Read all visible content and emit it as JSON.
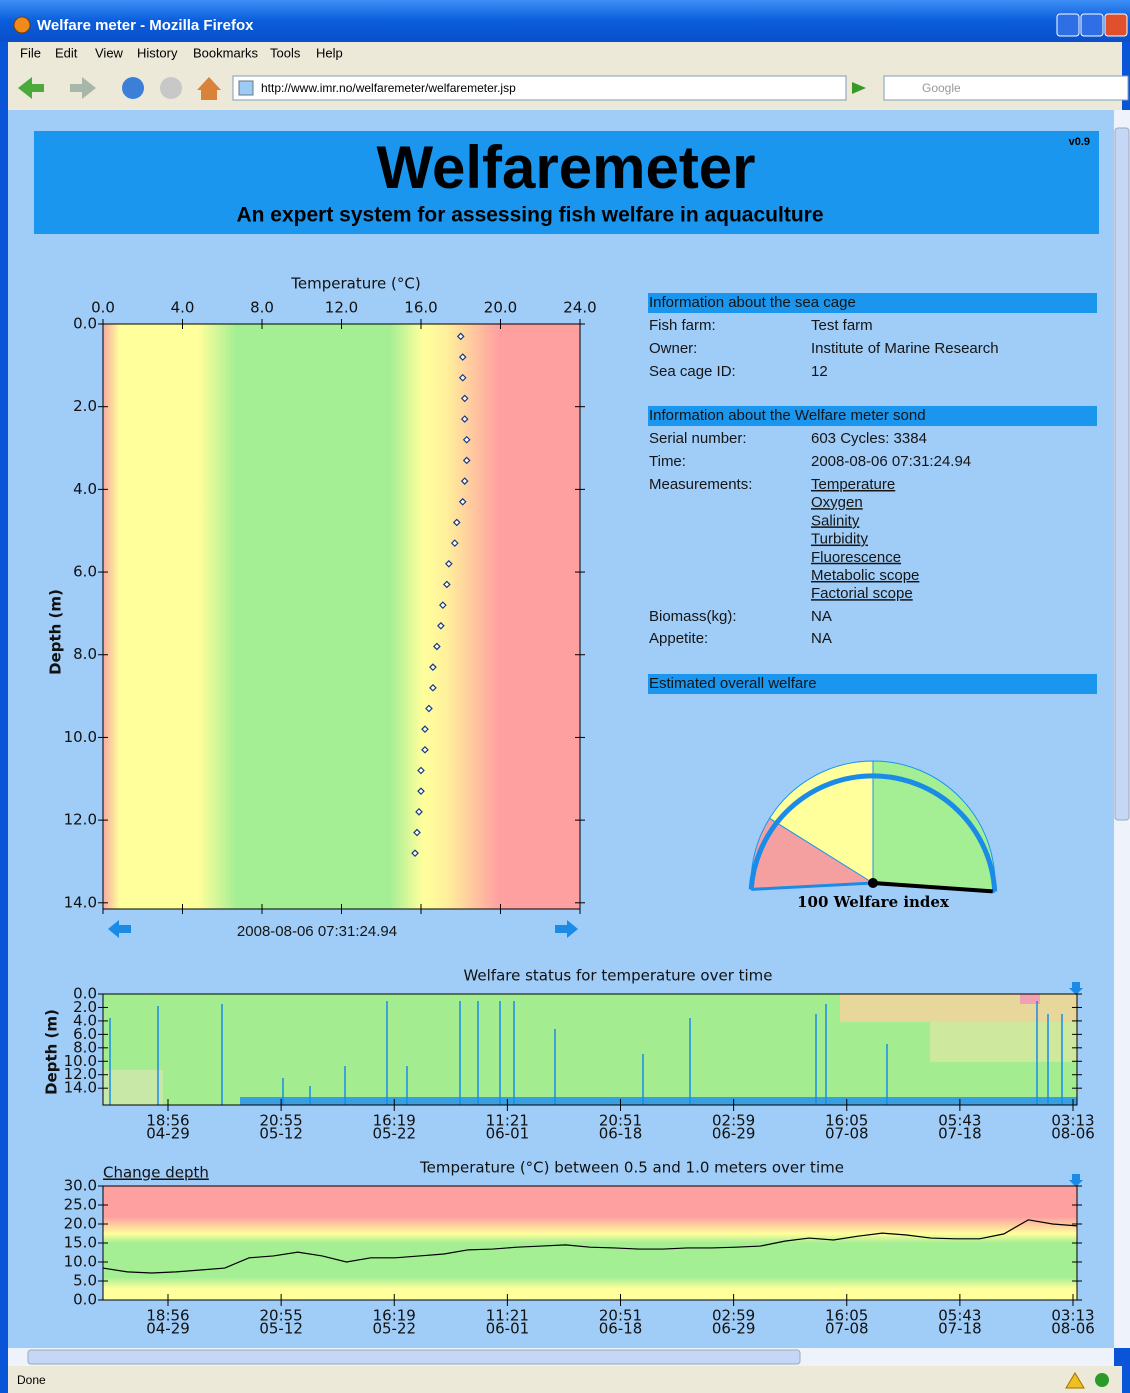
{
  "window": {
    "title": "Welfare meter - Mozilla Firefox"
  },
  "menu": [
    "File",
    "Edit",
    "View",
    "History",
    "Bookmarks",
    "Tools",
    "Help"
  ],
  "toolbar": {
    "url": "http://www.imr.no/welfaremeter/welfaremeter.jsp",
    "search": "Google"
  },
  "header": {
    "title": "Welfaremeter",
    "subtitle": "An expert system for assessing fish welfare in aquaculture",
    "version": "v0.9"
  },
  "sea_cage": {
    "heading": "Information about the sea cage",
    "rows": [
      [
        "Fish farm:",
        "Test farm"
      ],
      [
        "Owner:",
        "Institute of Marine Research"
      ],
      [
        "Sea cage ID:",
        "12"
      ]
    ]
  },
  "sond": {
    "heading": "Information about the Welfare meter sond",
    "rows": [
      [
        "Serial number:",
        "603 Cycles: 3384"
      ],
      [
        "Time:",
        "2008-08-06 07:31:24.94"
      ]
    ],
    "measurements_label": "Measurements:",
    "measurements": [
      "Temperature",
      "Oxygen",
      "Salinity",
      "Turbidity",
      "Fluorescence",
      "Metabolic scope",
      "Factorial scope"
    ],
    "rows2": [
      [
        "Biomass(kg):",
        "NA"
      ],
      [
        "Appetite:",
        "NA"
      ]
    ]
  },
  "welfare": {
    "heading": "Estimated overall welfare"
  },
  "status": "Done",
  "chart_data": [
    {
      "type": "scatter",
      "title": "Temperature (°C)",
      "ylabel": "Depth (m)",
      "timestamp": "2008-08-06 07:31:24.94",
      "x": [
        18.0,
        18.1,
        18.1,
        18.2,
        18.2,
        18.3,
        18.3,
        18.2,
        18.1,
        17.8,
        17.7,
        17.4,
        17.3,
        17.1,
        17.0,
        16.8,
        16.6,
        16.6,
        16.4,
        16.2,
        16.2,
        16.0,
        16.0,
        15.9,
        15.8,
        15.7
      ],
      "values": [
        0.3,
        0.8,
        1.3,
        1.8,
        2.3,
        2.8,
        3.3,
        3.8,
        4.3,
        4.8,
        5.3,
        5.8,
        6.3,
        6.8,
        7.3,
        7.8,
        8.3,
        8.8,
        9.3,
        9.8,
        10.3,
        10.8,
        11.3,
        11.8,
        12.3,
        12.8
      ],
      "xlim": [
        0,
        24
      ],
      "ylim": [
        0,
        14.15
      ],
      "y_inverted": true,
      "xticks": [
        {
          "value": 0,
          "label": "0.0"
        },
        {
          "value": 4,
          "label": "4.0"
        },
        {
          "value": 8,
          "label": "8.0"
        },
        {
          "value": 12,
          "label": "12.0"
        },
        {
          "value": 16,
          "label": "16.0"
        },
        {
          "value": 20,
          "label": "20.0"
        },
        {
          "value": 24,
          "label": "24.0"
        }
      ],
      "yticks": [
        {
          "value": 0,
          "label": "0.0"
        },
        {
          "value": 2,
          "label": "2.0"
        },
        {
          "value": 4,
          "label": "4.0"
        },
        {
          "value": 6,
          "label": "6.0"
        },
        {
          "value": 8,
          "label": "8.0"
        },
        {
          "value": 10,
          "label": "10.0"
        },
        {
          "value": 12,
          "label": "12.0"
        },
        {
          "value": 14,
          "label": "14.0"
        }
      ]
    },
    {
      "type": "heatmap",
      "title": "Welfare status for temperature over time",
      "ylabel": "Depth (m)",
      "ylim": [
        0,
        16.5
      ],
      "y_inverted": true,
      "yticks": [
        {
          "value": 0,
          "label": "0.0"
        },
        {
          "value": 2,
          "label": "2.0"
        },
        {
          "value": 4,
          "label": "4.0"
        },
        {
          "value": 6,
          "label": "6.0"
        },
        {
          "value": 8,
          "label": "8.0"
        },
        {
          "value": 10,
          "label": "10.0"
        },
        {
          "value": 12,
          "label": "12.0"
        },
        {
          "value": 14,
          "label": "14.0"
        }
      ],
      "xticks": [
        {
          "time": "18:56",
          "date": "04-29"
        },
        {
          "time": "20:55",
          "date": "05-12"
        },
        {
          "time": "16:19",
          "date": "05-22"
        },
        {
          "time": "11:21",
          "date": "06-01"
        },
        {
          "time": "20:51",
          "date": "06-18"
        },
        {
          "time": "02:59",
          "date": "06-29"
        },
        {
          "time": "16:05",
          "date": "07-08"
        },
        {
          "time": "05:43",
          "date": "07-18"
        },
        {
          "time": "03:13",
          "date": "08-06"
        }
      ]
    },
    {
      "type": "line",
      "title": "Temperature (°C) between 0.5 and 1.0 meters over time",
      "link": "Change depth",
      "color": "#000000",
      "values": [
        8.4,
        7.4,
        7.1,
        7.4,
        7.9,
        8.4,
        11.1,
        11.6,
        12.6,
        11.6,
        10.0,
        11.1,
        11.1,
        11.6,
        12.1,
        13.2,
        13.4,
        13.9,
        14.2,
        14.5,
        13.9,
        13.7,
        13.4,
        13.4,
        13.7,
        13.7,
        13.9,
        14.2,
        15.5,
        16.3,
        15.8,
        16.8,
        17.6,
        17.1,
        16.3,
        16.1,
        16.1,
        17.4,
        21.1,
        20.0,
        19.5
      ],
      "ylim": [
        0,
        30
      ],
      "yticks": [
        {
          "value": 0,
          "label": "0.0"
        },
        {
          "value": 5,
          "label": "5.0"
        },
        {
          "value": 10,
          "label": "10.0"
        },
        {
          "value": 15,
          "label": "15.0"
        },
        {
          "value": 20,
          "label": "20.0"
        },
        {
          "value": 25,
          "label": "25.0"
        },
        {
          "value": 30,
          "label": "30.0"
        }
      ],
      "xticks": [
        {
          "time": "18:56",
          "date": "04-29"
        },
        {
          "time": "20:55",
          "date": "05-12"
        },
        {
          "time": "16:19",
          "date": "05-22"
        },
        {
          "time": "11:21",
          "date": "06-01"
        },
        {
          "time": "20:51",
          "date": "06-18"
        },
        {
          "time": "02:59",
          "date": "06-29"
        },
        {
          "time": "16:05",
          "date": "07-08"
        },
        {
          "time": "05:43",
          "date": "07-18"
        },
        {
          "time": "03:13",
          "date": "08-06"
        }
      ]
    },
    {
      "type": "gauge",
      "value": 100,
      "label": "Welfare index",
      "lim": [
        0,
        100
      ]
    }
  ]
}
